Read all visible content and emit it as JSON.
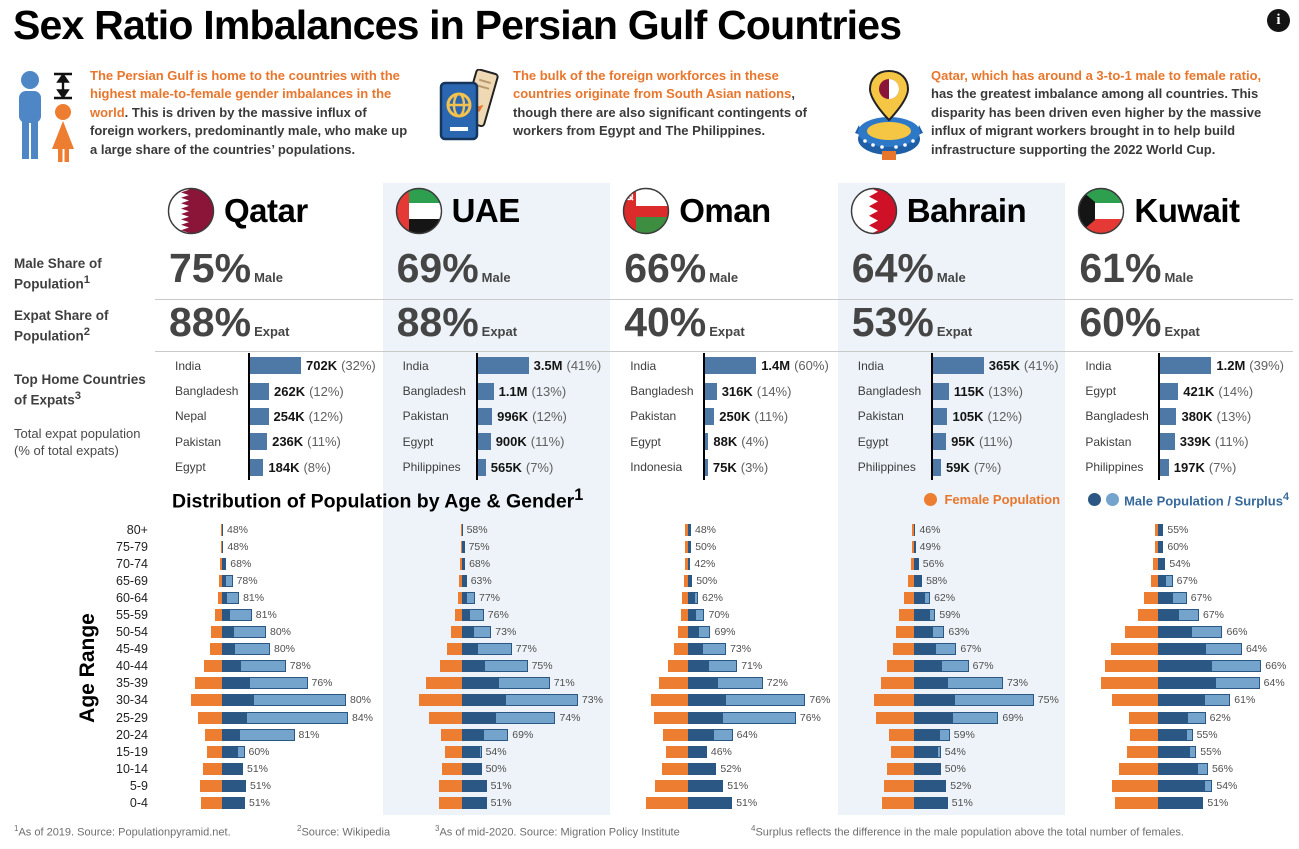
{
  "title": "Sex Ratio Imbalances in Persian Gulf Countries",
  "icons": {
    "info": "i"
  },
  "colors": {
    "female_orange": "#ED7D31",
    "accent_text": "#E8762C",
    "male_dark_blue": "#2A5783",
    "male_light_blue": "#74A3CB",
    "expat_bar_blue": "#4E79A7",
    "highlight_band": "#EDF3F8",
    "legend_blue": "#35689B"
  },
  "intro": [
    {
      "icon": "icon-gender",
      "highlight": "The Persian Gulf is home to the countries with the highest male-to-female gender imbalances in the world",
      "rest": ". This is driven by the massive influx of foreign workers, predominantly male, who make up a large share of the countries’ populations."
    },
    {
      "icon": "icon-passport",
      "highlight": "The bulk of the foreign workforces in these countries originate from South Asian nations",
      "rest": ", though there are also significant contingents of workers from Egypt and The Philippines."
    },
    {
      "icon": "icon-stadium",
      "highlight": "Qatar, which has around a 3-to-1 male to female ratio,",
      "rest": " has the greatest imbalance among all countries. This disparity has been driven even higher by the massive influx of migrant workers brought in to help build infrastructure supporting the 2022 World Cup."
    }
  ],
  "row_labels": {
    "male_share_label": "Male Share of Population",
    "male_share_sup": "1",
    "expat_share_label": "Expat Share of Population",
    "expat_share_sup": "2",
    "top_home_label": "Top Home Countries of Expats",
    "top_home_sup": "3",
    "top_home_sub": "Total expat population (% of total expats)",
    "male_unit": "Male",
    "expat_unit": "Expat"
  },
  "pyramid_section": {
    "title": "Distribution of Population by Age & Gender",
    "title_sup": "1",
    "legend_female": "Female Population",
    "legend_male": "Male Population / Surplus",
    "legend_male_sup": "4",
    "y_axis_label": "Age Range"
  },
  "age_groups": [
    "80+",
    "75-79",
    "70-74",
    "65-69",
    "60-64",
    "55-59",
    "50-54",
    "45-49",
    "40-44",
    "35-39",
    "30-34",
    "25-29",
    "20-24",
    "15-19",
    "10-14",
    "5-9",
    "0-4"
  ],
  "countries": [
    {
      "name": "Qatar",
      "flag": "flag-qatar",
      "male_share": "75%",
      "expat_share": "88%",
      "highlighted": false
    },
    {
      "name": "UAE",
      "flag": "flag-uae",
      "male_share": "69%",
      "expat_share": "88%",
      "highlighted": true
    },
    {
      "name": "Oman",
      "flag": "flag-oman",
      "male_share": "66%",
      "expat_share": "40%",
      "highlighted": false
    },
    {
      "name": "Bahrain",
      "flag": "flag-bahrain",
      "male_share": "64%",
      "expat_share": "53%",
      "highlighted": true
    },
    {
      "name": "Kuwait",
      "flag": "flag-kuwait",
      "male_share": "61%",
      "expat_share": "60%",
      "highlighted": false
    }
  ],
  "chart_data": {
    "expat_bars": {
      "type": "bar",
      "unit": "expat population (K = thousands, M = millions); share = % of total expats",
      "countries": {
        "Qatar": {
          "categories": [
            "India",
            "Bangladesh",
            "Nepal",
            "Pakistan",
            "Egypt"
          ],
          "values": [
            702,
            262,
            254,
            236,
            184
          ],
          "value_labels": [
            "702K",
            "262K",
            "254K",
            "236K",
            "184K"
          ],
          "share_labels": [
            "(32%)",
            "(12%)",
            "(12%)",
            "(11%)",
            "(8%)"
          ]
        },
        "UAE": {
          "categories": [
            "India",
            "Bangladesh",
            "Pakistan",
            "Egypt",
            "Philippines"
          ],
          "values": [
            3500,
            1100,
            996,
            900,
            565
          ],
          "value_labels": [
            "3.5M",
            "1.1M",
            "996K",
            "900K",
            "565K"
          ],
          "share_labels": [
            "(41%)",
            "(13%)",
            "(12%)",
            "(11%)",
            "(7%)"
          ]
        },
        "Oman": {
          "categories": [
            "India",
            "Bangladesh",
            "Pakistan",
            "Egypt",
            "Indonesia"
          ],
          "values": [
            1400,
            316,
            250,
            88,
            75
          ],
          "value_labels": [
            "1.4M",
            "316K",
            "250K",
            "88K",
            "75K"
          ],
          "share_labels": [
            "(60%)",
            "(14%)",
            "(11%)",
            "(4%)",
            "(3%)"
          ]
        },
        "Bahrain": {
          "categories": [
            "India",
            "Bangladesh",
            "Pakistan",
            "Egypt",
            "Philippines"
          ],
          "values": [
            365,
            115,
            105,
            95,
            59
          ],
          "value_labels": [
            "365K",
            "115K",
            "105K",
            "95K",
            "59K"
          ],
          "share_labels": [
            "(41%)",
            "(13%)",
            "(12%)",
            "(11%)",
            "(7%)"
          ]
        },
        "Kuwait": {
          "categories": [
            "India",
            "Egypt",
            "Bangladesh",
            "Pakistan",
            "Philippines"
          ],
          "values": [
            1200,
            421,
            380,
            339,
            197
          ],
          "value_labels": [
            "1.2M",
            "421K",
            "380K",
            "339K",
            "197K"
          ],
          "share_labels": [
            "(39%)",
            "(14%)",
            "(13%)",
            "(11%)",
            "(7%)"
          ]
        }
      }
    },
    "population_pyramids": {
      "type": "bar",
      "categories": [
        "80+",
        "75-79",
        "70-74",
        "65-69",
        "60-64",
        "55-59",
        "50-54",
        "45-49",
        "40-44",
        "35-39",
        "30-34",
        "25-29",
        "20-24",
        "15-19",
        "10-14",
        "5-9",
        "0-4"
      ],
      "note": "male_pct = labeled male share of each age group; female_rel = relative female population bar length read from chart",
      "male_pct": {
        "Qatar": [
          48,
          48,
          68,
          78,
          81,
          81,
          80,
          80,
          78,
          76,
          80,
          84,
          81,
          60,
          51,
          51,
          51
        ],
        "UAE": [
          58,
          75,
          68,
          63,
          77,
          76,
          73,
          77,
          75,
          71,
          73,
          74,
          69,
          54,
          50,
          51,
          51
        ],
        "Oman": [
          48,
          50,
          42,
          50,
          62,
          70,
          69,
          73,
          71,
          72,
          76,
          76,
          64,
          46,
          52,
          51,
          51
        ],
        "Bahrain": [
          46,
          49,
          56,
          58,
          62,
          59,
          63,
          67,
          67,
          73,
          75,
          69,
          59,
          54,
          50,
          52,
          51
        ],
        "Kuwait": [
          55,
          60,
          54,
          67,
          67,
          67,
          66,
          64,
          66,
          64,
          61,
          62,
          55,
          55,
          56,
          54,
          51
        ]
      },
      "female_rel": {
        "Qatar": [
          1,
          1.5,
          2,
          3,
          4,
          7,
          11,
          12,
          18,
          27,
          31,
          24,
          17,
          15,
          19,
          22,
          21
        ],
        "UAE": [
          1,
          1,
          1.5,
          3,
          4,
          7,
          11,
          15,
          22,
          36,
          43,
          33,
          21,
          17,
          20,
          23,
          23
        ],
        "Oman": [
          3,
          3,
          3,
          4,
          6,
          7,
          10,
          14,
          20,
          29,
          37,
          34,
          25,
          22,
          26,
          33,
          42
        ],
        "Bahrain": [
          2,
          2,
          3,
          6,
          10,
          15,
          18,
          21,
          27,
          33,
          40,
          38,
          25,
          23,
          27,
          30,
          32
        ],
        "Kuwait": [
          3,
          3,
          5,
          7,
          14,
          20,
          33,
          47,
          53,
          57,
          46,
          29,
          28,
          31,
          39,
          46,
          43
        ]
      }
    }
  },
  "footnotes": [
    {
      "sup": "1",
      "text": "As of 2019. Source: Populationpyramid.net."
    },
    {
      "sup": "2",
      "text": "Source: Wikipedia"
    },
    {
      "sup": "3",
      "text": "As of mid-2020. Source: Migration Policy Institute"
    },
    {
      "sup": "4",
      "text": "Surplus reflects the difference in the male population above the total number of females."
    }
  ]
}
